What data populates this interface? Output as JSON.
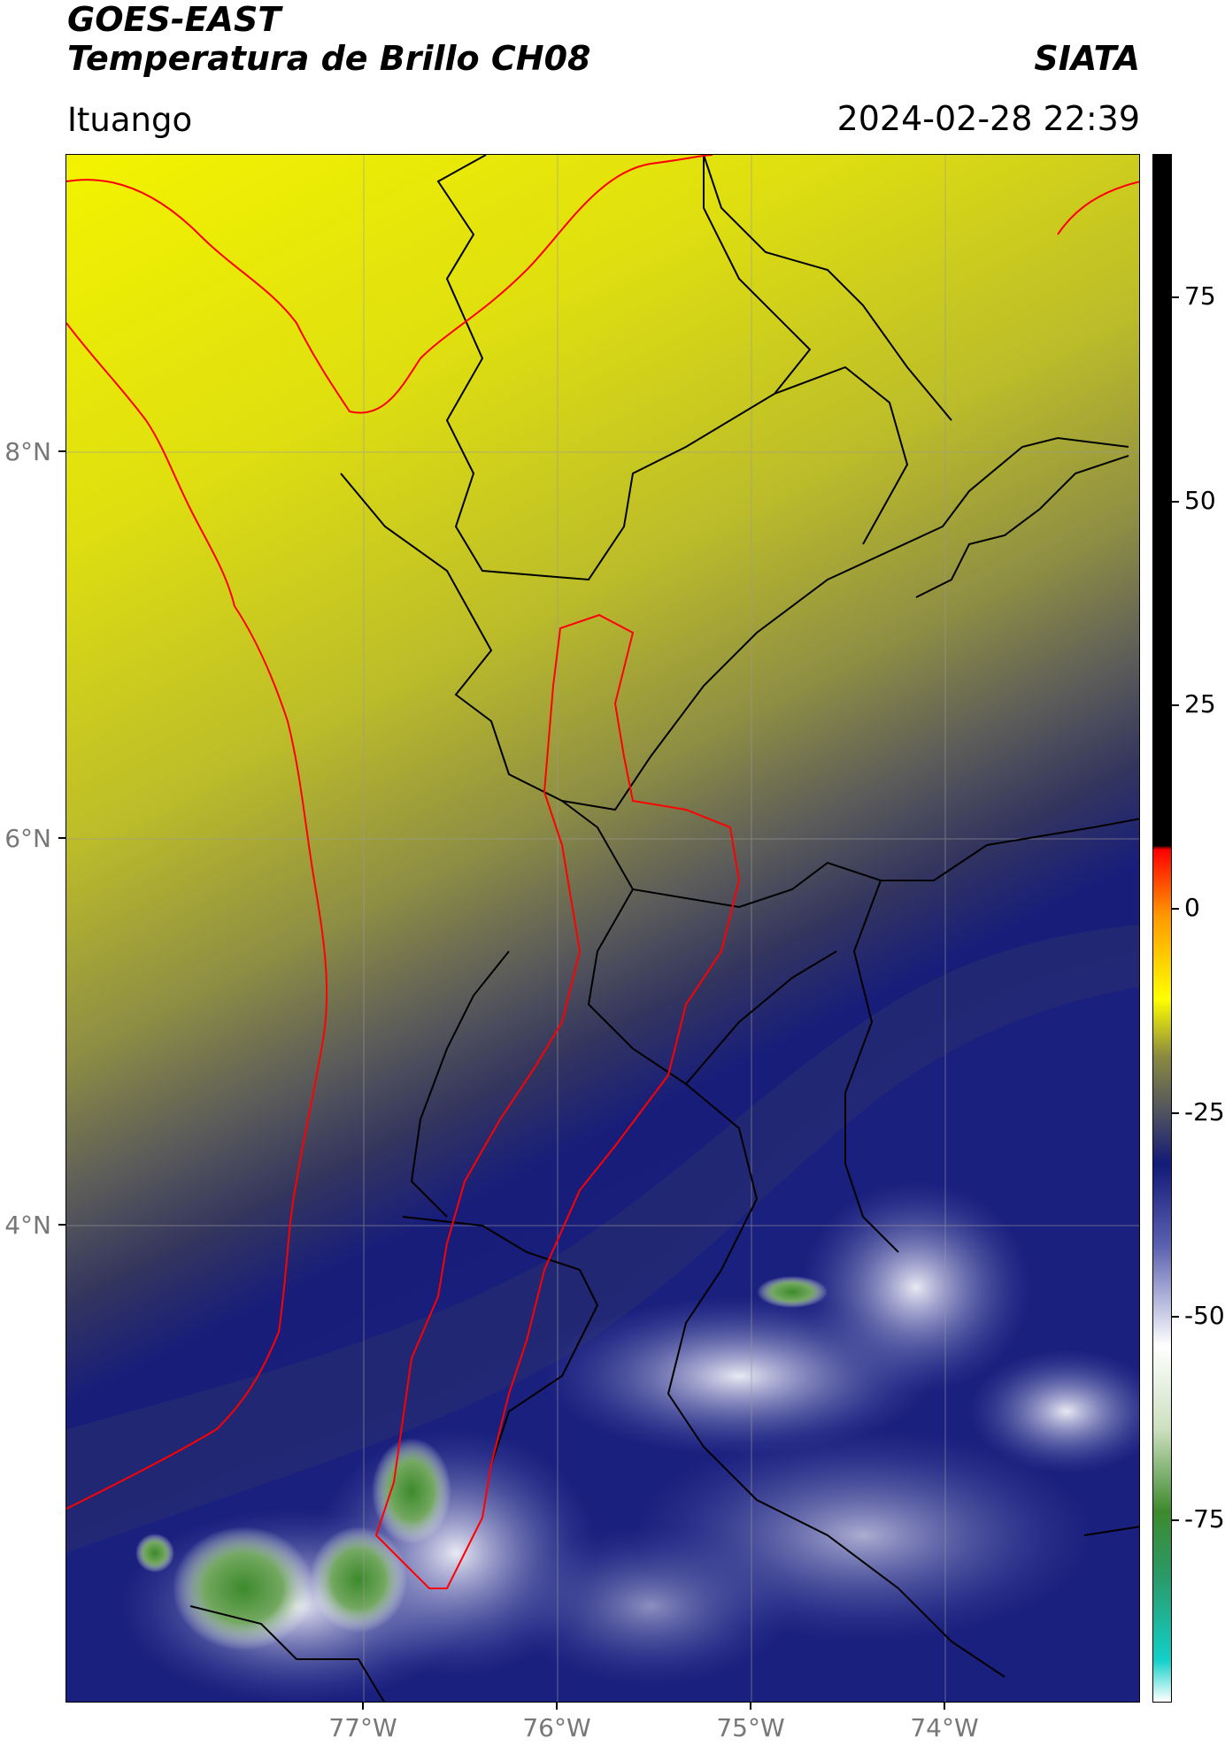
{
  "header": {
    "satellite": "GOES-EAST",
    "product": "Temperatura de Brillo CH08",
    "brand": "SIATA",
    "location": "Ituango",
    "datetime": "2024-02-28 22:39"
  },
  "axes": {
    "lat_labels": [
      "8°N",
      "6°N",
      "4°N"
    ],
    "lon_labels": [
      "77°W",
      "76°W",
      "75°W",
      "74°W"
    ]
  },
  "colorbar": {
    "tick_labels": [
      "75",
      "50",
      "25",
      "0",
      "-25",
      "-50",
      "-75"
    ],
    "stops": [
      {
        "value": -95,
        "color": "#ffffff"
      },
      {
        "value": -90,
        "color": "#12d0c8"
      },
      {
        "value": -80,
        "color": "#2a9a6a"
      },
      {
        "value": -72,
        "color": "#3d8a2c"
      },
      {
        "value": -62,
        "color": "#cde0c0"
      },
      {
        "value": -52,
        "color": "#ffffff"
      },
      {
        "value": -40,
        "color": "#5c62b0"
      },
      {
        "value": -30,
        "color": "#131a78"
      },
      {
        "value": -24,
        "color": "#4e5060"
      },
      {
        "value": -17,
        "color": "#8a8a40"
      },
      {
        "value": -10,
        "color": "#ffff00"
      },
      {
        "value": 0,
        "color": "#ff9900"
      },
      {
        "value": 8,
        "color": "#ff0000"
      },
      {
        "value": 8.5,
        "color": "#000000"
      },
      {
        "value": 92,
        "color": "#000000"
      }
    ]
  },
  "colors": {
    "coastline": "#ff0000",
    "basin": "#ff0000",
    "boundaries": "#000000",
    "gridlines": "#9a9a9a",
    "warm": "#f0f000",
    "cold": "#131a78",
    "coldest": "#3d8a2c"
  }
}
